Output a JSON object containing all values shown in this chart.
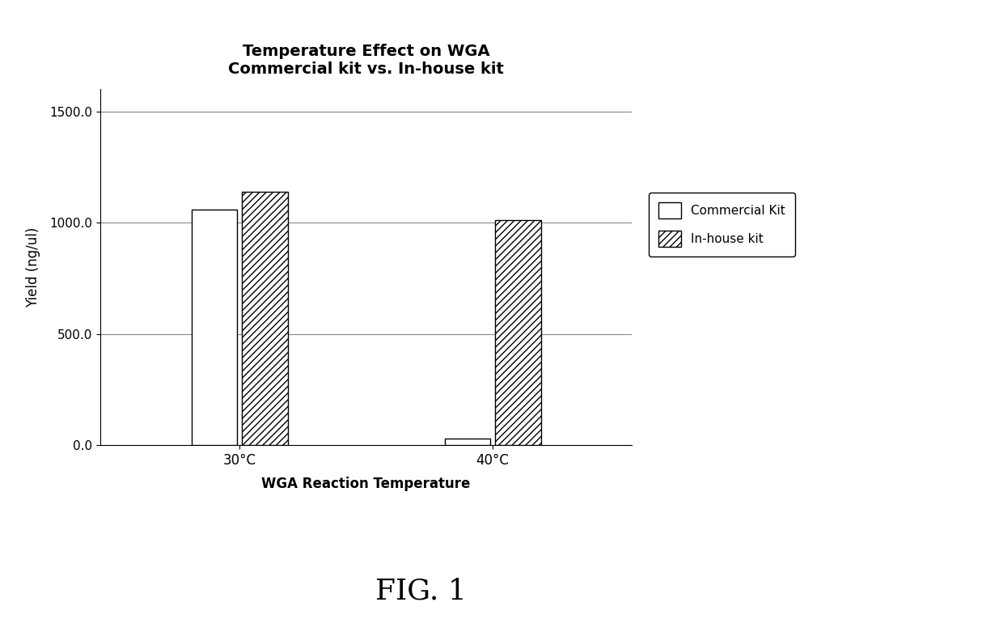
{
  "title_line1": "Temperature Effect on WGA",
  "title_line2": "Commercial kit vs. In-house kit",
  "xlabel": "WGA Reaction Temperature",
  "ylabel": "Yield (ng/ul)",
  "categories": [
    "30°C",
    "40°C"
  ],
  "commercial_kit_values": [
    1060,
    30
  ],
  "inhouse_kit_values": [
    1140,
    1010
  ],
  "ylim": [
    0,
    1600
  ],
  "yticks": [
    0.0,
    500.0,
    1000.0,
    1500.0
  ],
  "ytick_labels": [
    "0.0",
    "500.0",
    "1000.0",
    "1500.0"
  ],
  "bar_width": 0.18,
  "bar_gap": 0.02,
  "commercial_facecolor": "#ffffff",
  "commercial_edgecolor": "#000000",
  "inhouse_facecolor": "#ffffff",
  "inhouse_edgecolor": "#000000",
  "inhouse_hatch": "////",
  "legend_labels": [
    "Commercial Kit",
    "In-house kit"
  ],
  "fig_caption": "FIG. 1",
  "background_color": "#ffffff",
  "title_fontsize": 14,
  "axis_label_fontsize": 12,
  "tick_fontsize": 11,
  "legend_fontsize": 11,
  "caption_fontsize": 26
}
